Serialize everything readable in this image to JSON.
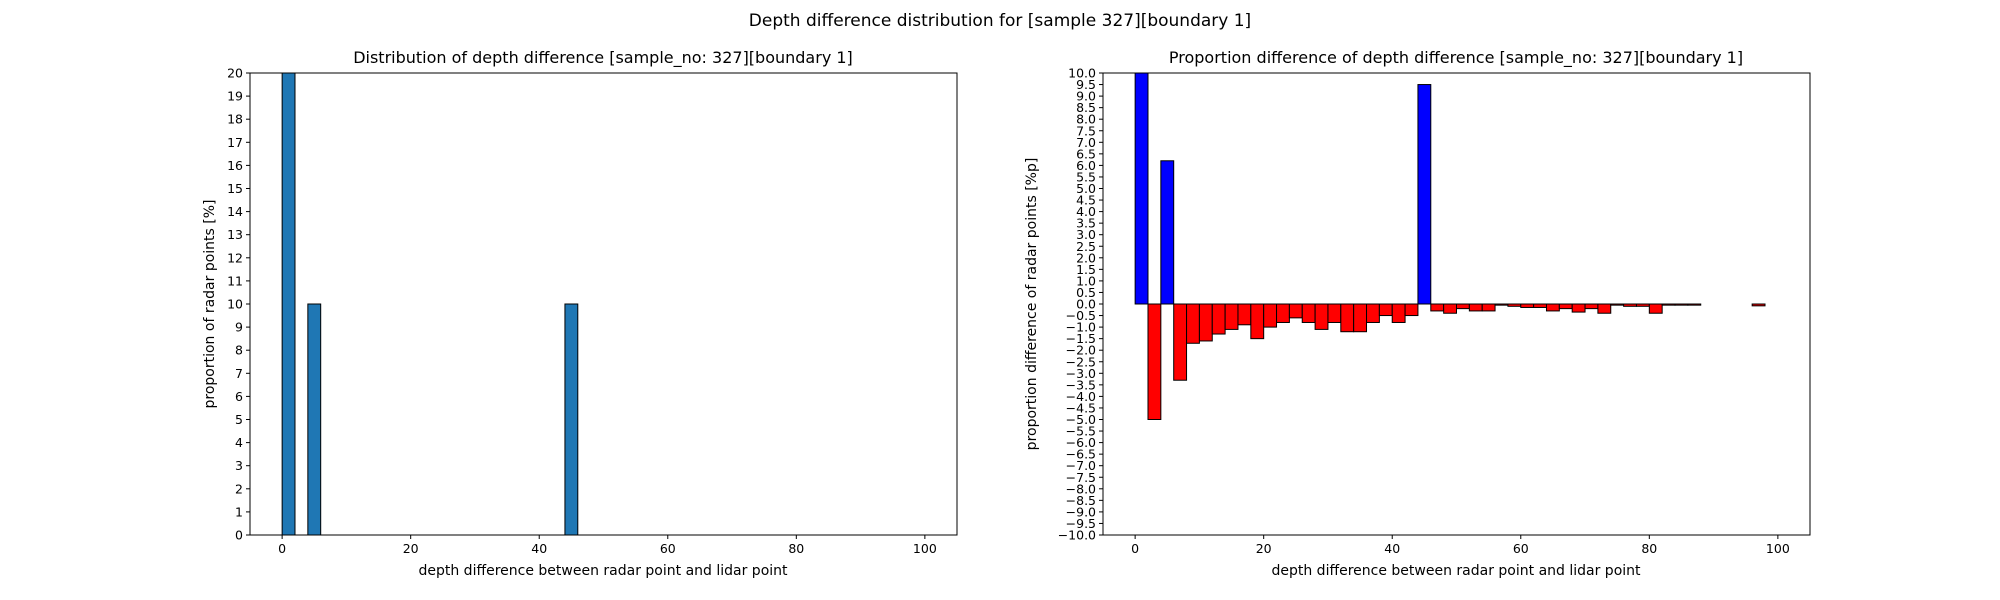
{
  "figure": {
    "suptitle": "Depth difference distribution for [sample 327][boundary 1]"
  },
  "chart_data": [
    {
      "type": "bar",
      "title": "Distribution of depth difference [sample_no: 327][boundary 1]",
      "xlabel": "depth difference between radar point and lidar point",
      "ylabel": "proportion of radar points [%]",
      "xlim": [
        -5,
        105
      ],
      "ylim": [
        0,
        20
      ],
      "xticks": [
        0,
        20,
        40,
        60,
        80,
        100
      ],
      "yticks": [
        0,
        1,
        2,
        3,
        4,
        5,
        6,
        7,
        8,
        9,
        10,
        11,
        12,
        13,
        14,
        15,
        16,
        17,
        18,
        19,
        20
      ],
      "bar_width": 2,
      "bar_color": "#1f77b4",
      "edge_color": "#000000",
      "grid": false,
      "x": [
        1,
        5,
        45
      ],
      "values": [
        20,
        10,
        10
      ]
    },
    {
      "type": "bar",
      "title": "Proportion difference of depth difference [sample_no: 327][boundary 1]",
      "xlabel": "depth difference between radar point and lidar point",
      "ylabel": "proportion difference of radar points [%p]",
      "xlim": [
        -5,
        105
      ],
      "ylim": [
        -10,
        10
      ],
      "xticks": [
        0,
        20,
        40,
        60,
        80,
        100
      ],
      "ytick_step": 0.5,
      "bar_width": 2,
      "positive_color": "#0000ff",
      "negative_color": "#ff0000",
      "edge_color": "#000000",
      "grid": false,
      "x": [
        1,
        3,
        5,
        7,
        9,
        11,
        13,
        15,
        17,
        19,
        21,
        23,
        25,
        27,
        29,
        31,
        33,
        35,
        37,
        39,
        41,
        43,
        45,
        47,
        49,
        51,
        53,
        55,
        57,
        59,
        61,
        63,
        65,
        67,
        69,
        71,
        73,
        75,
        77,
        79,
        81,
        83,
        85,
        87,
        89,
        91,
        93,
        95,
        97,
        99
      ],
      "values": [
        10.0,
        -5.0,
        6.2,
        -3.3,
        -1.7,
        -1.6,
        -1.3,
        -1.1,
        -0.9,
        -1.5,
        -1.0,
        -0.8,
        -0.6,
        -0.8,
        -1.1,
        -0.8,
        -1.2,
        -1.2,
        -0.8,
        -0.5,
        -0.8,
        -0.5,
        9.5,
        -0.3,
        -0.4,
        -0.2,
        -0.3,
        -0.3,
        -0.05,
        -0.1,
        -0.15,
        -0.15,
        -0.3,
        -0.2,
        -0.35,
        -0.2,
        -0.4,
        -0.05,
        -0.1,
        -0.1,
        -0.4,
        -0.05,
        -0.05,
        -0.05,
        0.0,
        0.0,
        0.0,
        0.0,
        -0.08,
        0.0
      ]
    }
  ]
}
